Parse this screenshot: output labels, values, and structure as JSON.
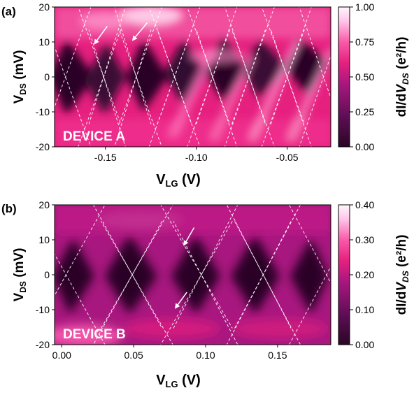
{
  "chart_data": [
    {
      "type": "heatmap",
      "panel_label": "(a)",
      "title": "",
      "xlabel_main": "V",
      "xlabel_sub": "LG",
      "xlabel_unit": " (V)",
      "ylabel_main": "V",
      "ylabel_sub": "DS",
      "ylabel_unit": " (mV)",
      "xlim": [
        -0.178,
        -0.026
      ],
      "ylim": [
        -20,
        20
      ],
      "xticks": [
        -0.15,
        -0.1,
        -0.05
      ],
      "xtick_labels": [
        "-0.15",
        "-0.10",
        "-0.05"
      ],
      "yticks": [
        20,
        10,
        0,
        -10,
        -20
      ],
      "ytick_labels": [
        "20",
        "10",
        "0",
        "-10",
        "-20"
      ],
      "colorbar": {
        "label_main": "dI/d",
        "label_italic": "V",
        "label_sub": "DS",
        "label_unit": " (e²/h)",
        "range": [
          0,
          1.0
        ],
        "ticks": [
          1.0,
          0.75,
          0.5,
          0.25,
          0.0
        ],
        "tick_labels": [
          "1.00",
          "0.75",
          "0.50",
          "0.25",
          "0.00"
        ]
      },
      "annotation": "DEVICE A",
      "diamonds": {
        "charge_degeneracy_points_VLG": [
          -0.172,
          -0.151,
          -0.133,
          -0.112,
          -0.091,
          -0.071,
          -0.05,
          -0.03
        ],
        "diamond_half_height_mV": 15
      },
      "arrows": [
        {
          "from": [
            -0.149,
            14.5
          ],
          "to": [
            -0.156,
            9.5
          ]
        },
        {
          "from": [
            -0.127,
            15.5
          ],
          "to": [
            -0.135,
            10.5
          ]
        }
      ],
      "colors": [
        "#2a0626",
        "#5a0d52",
        "#a8177f",
        "#e6207f",
        "#f95aa8",
        "#ffc6ea",
        "#fff6fc"
      ]
    },
    {
      "type": "heatmap",
      "panel_label": "(b)",
      "title": "",
      "xlabel_main": "V",
      "xlabel_sub": "LG",
      "xlabel_unit": " (V)",
      "ylabel_main": "V",
      "ylabel_sub": "DS",
      "ylabel_unit": " (mV)",
      "xlim": [
        -0.005,
        0.187
      ],
      "ylim": [
        -20,
        20
      ],
      "xticks": [
        0.0,
        0.05,
        0.1,
        0.15
      ],
      "xtick_labels": [
        "0.00",
        "0.05",
        "0.10",
        "0.15"
      ],
      "yticks": [
        20,
        10,
        0,
        -10,
        -20
      ],
      "ytick_labels": [
        "20",
        "10",
        "0",
        "-10",
        "-20"
      ],
      "colorbar": {
        "label_main": "dI/d",
        "label_italic": "V",
        "label_sub": "DS",
        "label_unit": " (e²/h)",
        "range": [
          0,
          0.4
        ],
        "ticks": [
          0.4,
          0.3,
          0.2,
          0.1,
          0.0
        ],
        "tick_labels": [
          "0.40",
          "0.30",
          "0.20",
          "0.10",
          "0.00"
        ]
      },
      "annotation": "DEVICE B",
      "diamonds": {
        "charge_degeneracy_points_VLG": [
          0.003,
          0.049,
          0.097,
          0.14,
          0.184
        ],
        "diamond_half_height_mV": 17
      },
      "arrows": [
        {
          "from": [
            0.092,
            13.5
          ],
          "to": [
            0.085,
            8.5
          ]
        },
        {
          "from": [
            0.087,
            -5
          ],
          "to": [
            0.079,
            -9.5
          ]
        }
      ],
      "colors": [
        "#2a0626",
        "#5a0d52",
        "#a8177f",
        "#e6207f",
        "#f95aa8",
        "#ffc6ea",
        "#fff6fc"
      ]
    }
  ]
}
